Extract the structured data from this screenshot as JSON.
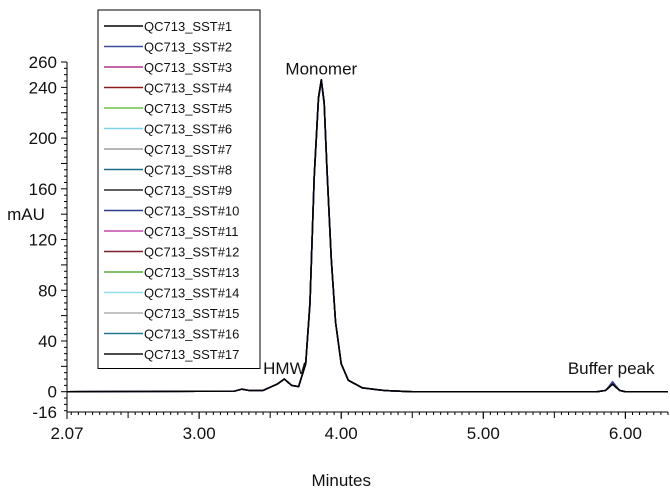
{
  "chart_data": {
    "type": "line",
    "title": "",
    "xlabel": "Minutes",
    "ylabel": "mAU",
    "xlim": [
      2.07,
      6.3
    ],
    "ylim": [
      -16,
      260
    ],
    "x_ticks": [
      2.07,
      3.0,
      4.0,
      5.0,
      6.0
    ],
    "x_tick_labels": [
      "2.07",
      "3.00",
      "4.00",
      "5.00",
      "6.00"
    ],
    "y_ticks": [
      -16,
      0,
      40,
      80,
      120,
      160,
      200,
      240,
      260
    ],
    "y_tick_labels": [
      "-16",
      "0",
      "40",
      "80",
      "120",
      "160",
      "200",
      "240",
      "260"
    ],
    "legend_position": "top-left",
    "grid": false,
    "annotations": [
      {
        "text": "Monomer",
        "x": 3.86,
        "y": 250
      },
      {
        "text": "HMW",
        "x": 3.6,
        "y": 14
      },
      {
        "text": "Buffer peak",
        "x": 5.9,
        "y": 14
      }
    ],
    "peaks": [
      {
        "label": "HMW",
        "x": 3.61,
        "y": 10
      },
      {
        "label": "Monomer",
        "x": 3.86,
        "y": 246
      },
      {
        "label": "Buffer peak",
        "x": 5.91,
        "y": 6
      }
    ],
    "x": [
      2.07,
      3.25,
      3.3,
      3.35,
      3.45,
      3.55,
      3.6,
      3.65,
      3.7,
      3.75,
      3.78,
      3.81,
      3.84,
      3.86,
      3.88,
      3.9,
      3.93,
      3.96,
      4.0,
      4.05,
      4.15,
      4.3,
      4.5,
      5.8,
      5.86,
      5.89,
      5.91,
      5.93,
      5.96,
      6.0,
      6.3
    ],
    "series": [
      {
        "name": "QC713_SST#1",
        "color": "#000000",
        "values": [
          0,
          0.5,
          2,
          1,
          1,
          6,
          10,
          5,
          4,
          22,
          70,
          170,
          232,
          246,
          228,
          175,
          105,
          55,
          22,
          9,
          3,
          1,
          0,
          0,
          1,
          4,
          6,
          4,
          1,
          0,
          0
        ]
      },
      {
        "name": "QC713_SST#2",
        "color": "#3b4a9c",
        "values": [
          0,
          0.5,
          2,
          1,
          1,
          6,
          10,
          5,
          4,
          22,
          69,
          169,
          231,
          245,
          227,
          174,
          104,
          55,
          22,
          9,
          3,
          1,
          0,
          0,
          1,
          5,
          8,
          5,
          1,
          0,
          0
        ]
      },
      {
        "name": "QC713_SST#3",
        "color": "#b0338c",
        "values": [
          0,
          0.5,
          2,
          1,
          1,
          6,
          10,
          5,
          4,
          22,
          69,
          169,
          231,
          245,
          227,
          174,
          104,
          55,
          22,
          9,
          3,
          1,
          0,
          0,
          1,
          4,
          7,
          4,
          1,
          0,
          0
        ]
      },
      {
        "name": "QC713_SST#4",
        "color": "#8b1a1a",
        "values": [
          0,
          0.5,
          2,
          1,
          1,
          6,
          10,
          5,
          4,
          22,
          70,
          170,
          232,
          246,
          228,
          175,
          105,
          55,
          22,
          9,
          3,
          1,
          0,
          0,
          1,
          4,
          6,
          4,
          1,
          0,
          0
        ]
      },
      {
        "name": "QC713_SST#5",
        "color": "#6cc04a",
        "values": [
          0,
          0.5,
          2,
          1,
          1,
          6,
          10,
          5,
          4,
          22,
          69,
          169,
          231,
          245,
          227,
          174,
          104,
          55,
          22,
          9,
          3,
          1,
          0,
          0,
          1,
          4,
          6,
          4,
          1,
          0,
          0
        ]
      },
      {
        "name": "QC713_SST#6",
        "color": "#7fd3e8",
        "values": [
          0,
          0.5,
          2,
          1,
          1,
          6,
          10,
          5,
          4,
          22,
          70,
          170,
          232,
          246,
          228,
          175,
          105,
          55,
          22,
          9,
          3,
          1,
          0,
          0,
          1,
          4,
          6,
          4,
          1,
          0,
          0
        ]
      },
      {
        "name": "QC713_SST#7",
        "color": "#9e9e9e",
        "values": [
          0,
          0.5,
          2,
          1,
          1,
          6,
          10,
          5,
          4,
          22,
          69,
          169,
          231,
          245,
          227,
          174,
          104,
          55,
          22,
          9,
          3,
          1,
          0,
          0,
          1,
          4,
          6,
          4,
          1,
          0,
          0
        ]
      },
      {
        "name": "QC713_SST#8",
        "color": "#1a6e8a",
        "values": [
          0,
          0.5,
          2,
          1,
          1,
          6,
          10,
          5,
          4,
          22,
          70,
          170,
          232,
          246,
          228,
          175,
          105,
          55,
          22,
          9,
          3,
          1,
          0,
          0,
          1,
          4,
          6,
          4,
          1,
          0,
          0
        ]
      },
      {
        "name": "QC713_SST#9",
        "color": "#2b2b2b",
        "values": [
          0,
          0.5,
          2,
          1,
          1,
          6,
          10,
          5,
          4,
          22,
          69,
          169,
          231,
          245,
          227,
          174,
          104,
          55,
          22,
          9,
          3,
          1,
          0,
          0,
          1,
          4,
          6,
          4,
          1,
          0,
          0
        ]
      },
      {
        "name": "QC713_SST#10",
        "color": "#2e3a8c",
        "values": [
          0,
          0.5,
          2,
          1,
          1,
          6,
          10,
          5,
          4,
          22,
          70,
          170,
          232,
          246,
          228,
          175,
          105,
          55,
          22,
          9,
          3,
          1,
          0,
          0,
          1,
          4,
          6,
          4,
          1,
          0,
          0
        ]
      },
      {
        "name": "QC713_SST#11",
        "color": "#c04aa8",
        "values": [
          0,
          0.5,
          2,
          1,
          1,
          6,
          10,
          5,
          4,
          22,
          69,
          169,
          231,
          245,
          227,
          174,
          104,
          55,
          22,
          9,
          3,
          1,
          0,
          0,
          1,
          4,
          6,
          4,
          1,
          0,
          0
        ]
      },
      {
        "name": "QC713_SST#12",
        "color": "#7a1f2b",
        "values": [
          0,
          0.5,
          2,
          1,
          1,
          6,
          10,
          5,
          4,
          22,
          70,
          170,
          232,
          246,
          228,
          175,
          105,
          55,
          22,
          9,
          3,
          1,
          0,
          0,
          1,
          4,
          6,
          4,
          1,
          0,
          0
        ]
      },
      {
        "name": "QC713_SST#13",
        "color": "#5aa83a",
        "values": [
          0,
          0.5,
          2,
          1,
          1,
          6,
          10,
          5,
          4,
          22,
          69,
          169,
          231,
          245,
          227,
          174,
          104,
          55,
          22,
          9,
          3,
          1,
          0,
          0,
          1,
          4,
          6,
          4,
          1,
          0,
          0
        ]
      },
      {
        "name": "QC713_SST#14",
        "color": "#8fdcec",
        "values": [
          0,
          0.5,
          2,
          1,
          1,
          6,
          10,
          5,
          4,
          22,
          70,
          170,
          232,
          246,
          228,
          175,
          105,
          55,
          22,
          9,
          3,
          1,
          0,
          0,
          1,
          4,
          6,
          4,
          1,
          0,
          0
        ]
      },
      {
        "name": "QC713_SST#15",
        "color": "#b0b0b0",
        "values": [
          0,
          0.5,
          2,
          1,
          1,
          6,
          10,
          5,
          4,
          22,
          69,
          169,
          231,
          245,
          227,
          174,
          104,
          55,
          22,
          9,
          3,
          1,
          0,
          0,
          1,
          4,
          6,
          4,
          1,
          0,
          0
        ]
      },
      {
        "name": "QC713_SST#16",
        "color": "#1f7a8c",
        "values": [
          0,
          0.5,
          2,
          1,
          1,
          6,
          10,
          5,
          4,
          22,
          70,
          170,
          232,
          246,
          228,
          175,
          105,
          55,
          22,
          9,
          3,
          1,
          0,
          0,
          1,
          4,
          6,
          4,
          1,
          0,
          0
        ]
      },
      {
        "name": "QC713_SST#17",
        "color": "#111111",
        "values": [
          0,
          0.5,
          2,
          1,
          1,
          6,
          10,
          5,
          4,
          22,
          70,
          170,
          232,
          246,
          228,
          175,
          105,
          55,
          22,
          9,
          3,
          1,
          0,
          0,
          1,
          4,
          6,
          4,
          1,
          0,
          0
        ]
      }
    ]
  }
}
